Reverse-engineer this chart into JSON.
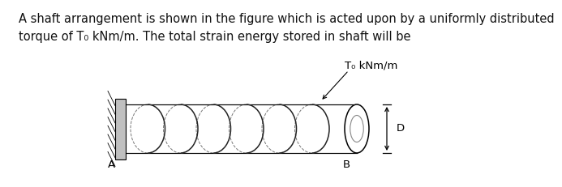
{
  "title_text": "A shaft arrangement is shown in the figure which is acted upon by a uniformly distributed\ntorque of T₀ kNm/m. The total strain energy stored in shaft will be",
  "title_fontsize": 10.5,
  "bg_color": "#ffffff",
  "coil_color": "#222222",
  "label_To": "T₀ kNm/m",
  "label_A": "A",
  "label_B": "B",
  "label_D": "D",
  "num_coils": 6
}
